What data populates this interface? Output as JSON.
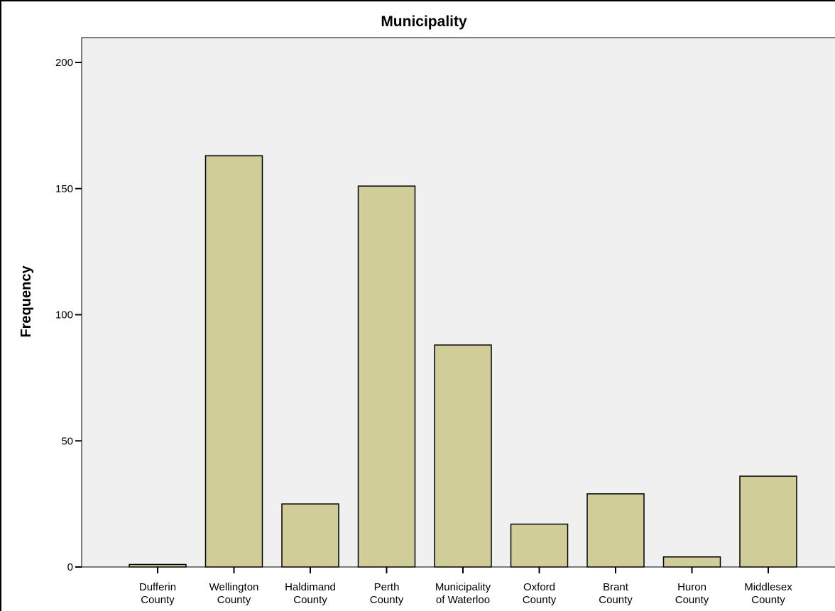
{
  "chart_data": {
    "type": "bar",
    "title": "Municipality",
    "xlabel": "",
    "ylabel": "Frequency",
    "ylim": [
      0,
      210
    ],
    "yticks": [
      0,
      50,
      100,
      150,
      200
    ],
    "grid": false,
    "categories": [
      [
        "Dufferin",
        "County"
      ],
      [
        "Wellington",
        "County"
      ],
      [
        "Haldimand",
        "County"
      ],
      [
        "Perth",
        "County"
      ],
      [
        "Municipality",
        "of Waterloo"
      ],
      [
        "Oxford",
        "County"
      ],
      [
        "Brant",
        "County"
      ],
      [
        "Huron",
        "County"
      ],
      [
        "Middlesex",
        "County"
      ]
    ],
    "values": [
      1,
      163,
      25,
      151,
      88,
      17,
      29,
      4,
      36
    ],
    "colors": {
      "bar_fill": "#d1cd98",
      "plot_background": "#f0f0f0"
    }
  }
}
